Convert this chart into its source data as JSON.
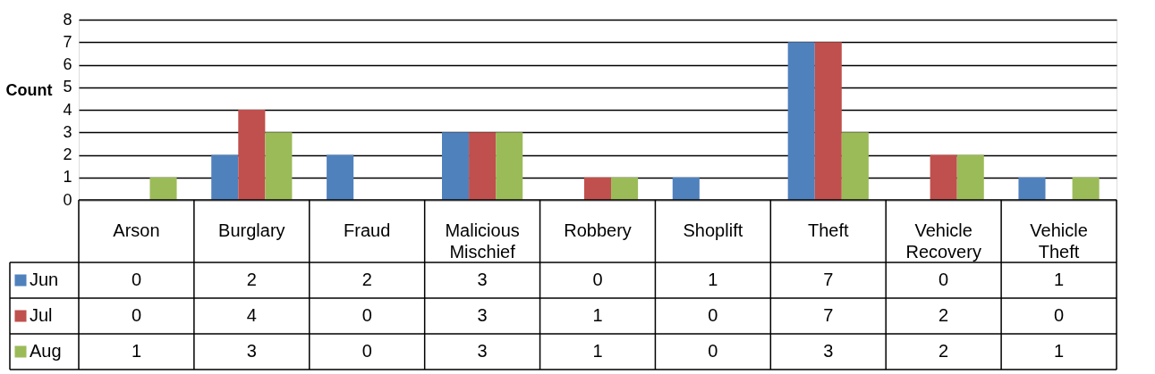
{
  "chart_data": {
    "type": "bar",
    "ylabel": "Count",
    "categories": [
      "Arson",
      "Burglary",
      "Fraud",
      "Malicious Mischief",
      "Robbery",
      "Shoplift",
      "Theft",
      "Vehicle Recovery",
      "Vehicle Theft"
    ],
    "series": [
      {
        "name": "Jun",
        "color": "#4f81bd",
        "values": [
          0,
          2,
          2,
          3,
          0,
          1,
          7,
          0,
          1
        ]
      },
      {
        "name": "Jul",
        "color": "#c0504d",
        "values": [
          0,
          4,
          0,
          3,
          1,
          0,
          7,
          2,
          0
        ]
      },
      {
        "name": "Aug",
        "color": "#9bbb59",
        "values": [
          1,
          3,
          0,
          3,
          1,
          0,
          3,
          2,
          1
        ]
      }
    ],
    "ylim": [
      0,
      8
    ],
    "yticks": [
      0,
      1,
      2,
      3,
      4,
      5,
      6,
      7,
      8
    ],
    "grid": "y",
    "legend": "left",
    "data_labels": true
  }
}
